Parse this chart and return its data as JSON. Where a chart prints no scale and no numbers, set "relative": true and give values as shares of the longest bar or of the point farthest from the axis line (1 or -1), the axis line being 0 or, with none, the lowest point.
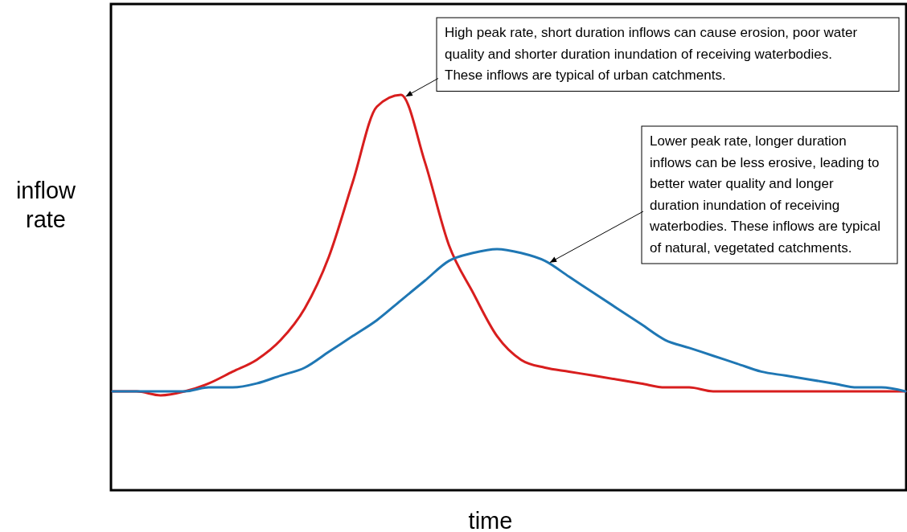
{
  "chart_data": {
    "type": "line",
    "relative": true,
    "xlabel": "time",
    "ylabel": "inflow rate",
    "categories": [
      null,
      null,
      null,
      null,
      null,
      null,
      null,
      null,
      null,
      null,
      null,
      null,
      null,
      null,
      null,
      null,
      null,
      null,
      null,
      null,
      null,
      null,
      null,
      null,
      null,
      null,
      null,
      null,
      null,
      null,
      null,
      null,
      null,
      null
    ],
    "series": [
      {
        "color": "#d81e1e",
        "values": [
          0.25,
          0.25,
          0.24,
          0.25,
          0.27,
          0.3,
          0.33,
          0.38,
          0.46,
          0.59,
          0.78,
          0.97,
          1.0,
          0.83,
          0.62,
          0.5,
          0.39,
          0.33,
          0.31,
          0.3,
          0.29,
          0.28,
          0.27,
          0.26,
          0.26,
          0.25,
          0.25,
          0.25,
          0.25,
          0.25,
          0.25,
          0.25,
          0.25,
          0.25
        ]
      },
      {
        "color": "#1f77b4",
        "values": [
          0.25,
          0.25,
          0.25,
          0.25,
          0.26,
          0.26,
          0.27,
          0.29,
          0.31,
          0.35,
          0.39,
          0.43,
          0.48,
          0.53,
          0.58,
          0.6,
          0.61,
          0.6,
          0.58,
          0.54,
          0.5,
          0.46,
          0.42,
          0.38,
          0.36,
          0.34,
          0.32,
          0.3,
          0.29,
          0.28,
          0.27,
          0.26,
          0.26,
          0.25
        ]
      }
    ],
    "annotations": [
      "High peak rate, short duration inflows can cause erosion, poor water quality and shorter duration inundation of receiving waterbodies. These inflows are typical of urban catchments.",
      "Lower peak rate, longer duration inflows can be less erosive, leading to better water quality and longer duration inundation of receiving waterbodies. These inflows are typical of natural, vegetated catchments."
    ],
    "grid": false
  }
}
